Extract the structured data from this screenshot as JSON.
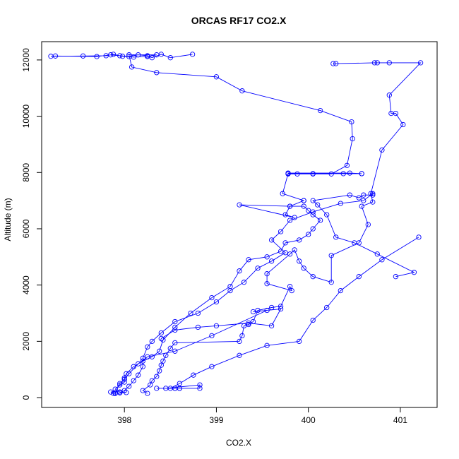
{
  "chart_data": {
    "type": "scatter",
    "title": "ORCAS RF17 CO2.X",
    "xlabel": "CO2.X",
    "ylabel": "Altitude (m)",
    "xlim": [
      397.1,
      401.4
    ],
    "ylim": [
      -350,
      12650
    ],
    "x_ticks": [
      398,
      399,
      400,
      401
    ],
    "y_ticks": [
      0,
      2000,
      4000,
      6000,
      8000,
      10000,
      12000
    ],
    "grid": false,
    "legend": "none",
    "colors": {
      "series": "#0000ff",
      "axis": "#000000",
      "background": "#ffffff"
    },
    "series": [
      {
        "points": [
          [
            398.74,
            12200
          ],
          [
            398.5,
            12080
          ],
          [
            398.4,
            12200
          ],
          [
            398.3,
            12080
          ],
          [
            398.25,
            12150
          ],
          [
            398.15,
            12180
          ],
          [
            398.05,
            12120
          ],
          [
            397.95,
            12150
          ],
          [
            397.85,
            12180
          ],
          [
            397.7,
            12120
          ],
          [
            397.25,
            12140
          ],
          [
            397.2,
            12130
          ],
          [
            397.55,
            12140
          ],
          [
            397.8,
            12150
          ],
          [
            397.88,
            12200
          ],
          [
            397.98,
            12130
          ],
          [
            398.1,
            12100
          ],
          [
            398.25,
            12120
          ],
          [
            398.35,
            12180
          ],
          [
            398.05,
            12180
          ],
          [
            398.08,
            11750
          ],
          [
            398.35,
            11550
          ],
          [
            399.0,
            11400
          ],
          [
            399.28,
            10900
          ],
          [
            400.13,
            10200
          ],
          [
            400.47,
            9800
          ],
          [
            400.48,
            9200
          ],
          [
            400.42,
            8250
          ],
          [
            400.25,
            7950
          ],
          [
            400.05,
            7950
          ],
          [
            399.88,
            7950
          ],
          [
            399.78,
            7950
          ],
          [
            399.78,
            7980
          ],
          [
            400.45,
            7980
          ],
          [
            400.58,
            7960
          ],
          [
            400.58,
            7960
          ],
          [
            400.38,
            7960
          ],
          [
            400.05,
            7960
          ],
          [
            399.78,
            7960
          ],
          [
            399.72,
            7250
          ],
          [
            399.95,
            7000
          ],
          [
            399.95,
            7000
          ],
          [
            399.8,
            6800
          ],
          [
            399.75,
            6500
          ],
          [
            399.85,
            6400
          ],
          [
            399.25,
            6850
          ],
          [
            399.8,
            6800
          ],
          [
            399.95,
            6800
          ],
          [
            400.0,
            6650
          ],
          [
            400.05,
            6500
          ],
          [
            400.13,
            6300
          ],
          [
            400.05,
            6000
          ],
          [
            400.0,
            5800
          ],
          [
            399.9,
            5600
          ],
          [
            399.75,
            5500
          ],
          [
            399.7,
            5200
          ],
          [
            399.55,
            5000
          ],
          [
            399.35,
            4900
          ],
          [
            399.25,
            4500
          ],
          [
            399.15,
            3950
          ],
          [
            398.95,
            3550
          ],
          [
            398.72,
            3000
          ],
          [
            398.55,
            2500
          ],
          [
            398.42,
            2050
          ],
          [
            398.38,
            1650
          ],
          [
            398.3,
            1450
          ],
          [
            398.2,
            1300
          ],
          [
            398.1,
            1100
          ],
          [
            398.02,
            850
          ],
          [
            398.0,
            700
          ],
          [
            398.0,
            550
          ],
          [
            397.95,
            450
          ],
          [
            397.9,
            300
          ],
          [
            397.95,
            200
          ],
          [
            398.02,
            180
          ],
          [
            397.9,
            170
          ],
          [
            397.85,
            200
          ]
        ]
      },
      {
        "points": [
          [
            400.27,
            11870
          ],
          [
            400.3,
            11870
          ],
          [
            400.72,
            11900
          ],
          [
            400.75,
            11900
          ],
          [
            400.88,
            11900
          ],
          [
            401.22,
            11900
          ],
          [
            400.88,
            10750
          ],
          [
            400.9,
            10100
          ],
          [
            400.95,
            10100
          ],
          [
            401.03,
            9700
          ],
          [
            400.8,
            8800
          ],
          [
            400.68,
            7250
          ],
          [
            400.7,
            6950
          ],
          [
            400.58,
            6800
          ],
          [
            400.65,
            6150
          ],
          [
            400.55,
            5500
          ],
          [
            400.25,
            5050
          ],
          [
            400.25,
            4100
          ],
          [
            400.05,
            4300
          ],
          [
            399.95,
            4600
          ],
          [
            399.9,
            4850
          ],
          [
            399.85,
            5250
          ],
          [
            399.8,
            5100
          ],
          [
            399.55,
            4400
          ],
          [
            399.55,
            4050
          ],
          [
            399.82,
            3800
          ],
          [
            399.8,
            3950
          ],
          [
            399.7,
            3250
          ],
          [
            399.6,
            3200
          ],
          [
            399.45,
            3100
          ],
          [
            399.4,
            2700
          ],
          [
            399.35,
            2600
          ],
          [
            399.3,
            2550
          ],
          [
            399.28,
            2200
          ],
          [
            399.25,
            2000
          ],
          [
            398.55,
            1950
          ],
          [
            398.5,
            1750
          ],
          [
            398.45,
            1500
          ],
          [
            398.42,
            1300
          ],
          [
            398.4,
            1150
          ],
          [
            398.38,
            950
          ],
          [
            398.35,
            750
          ],
          [
            398.3,
            600
          ],
          [
            398.28,
            450
          ],
          [
            398.2,
            250
          ],
          [
            398.25,
            150
          ]
        ]
      },
      {
        "points": [
          [
            401.2,
            5700
          ],
          [
            400.8,
            4900
          ],
          [
            400.55,
            4300
          ],
          [
            400.35,
            3800
          ],
          [
            400.2,
            3200
          ],
          [
            400.05,
            2750
          ],
          [
            399.9,
            2000
          ],
          [
            399.55,
            1850
          ],
          [
            399.25,
            1500
          ],
          [
            398.95,
            1100
          ],
          [
            398.75,
            800
          ],
          [
            398.6,
            500
          ],
          [
            398.5,
            330
          ],
          [
            398.55,
            330
          ],
          [
            398.6,
            330
          ],
          [
            398.82,
            330
          ],
          [
            398.82,
            450
          ],
          [
            398.45,
            330
          ],
          [
            398.35,
            330
          ],
          [
            398.6,
            330
          ],
          [
            398.55,
            330
          ]
        ]
      },
      {
        "points": [
          [
            398.4,
            2100
          ],
          [
            398.55,
            2400
          ],
          [
            398.8,
            2500
          ],
          [
            399.0,
            2550
          ],
          [
            399.35,
            2650
          ],
          [
            399.6,
            2550
          ],
          [
            399.7,
            3150
          ],
          [
            399.4,
            3050
          ],
          [
            399.55,
            3100
          ],
          [
            398.95,
            2200
          ],
          [
            398.55,
            1650
          ],
          [
            398.25,
            1450
          ],
          [
            398.15,
            1200
          ],
          [
            398.05,
            850
          ],
          [
            398.0,
            650
          ],
          [
            397.95,
            500
          ],
          [
            397.9,
            150
          ],
          [
            397.88,
            150
          ]
        ]
      },
      {
        "points": [
          [
            400.95,
            4300
          ],
          [
            401.15,
            4450
          ],
          [
            400.75,
            5100
          ],
          [
            400.5,
            5500
          ],
          [
            400.3,
            5700
          ],
          [
            400.2,
            6500
          ],
          [
            400.1,
            6850
          ],
          [
            400.05,
            7000
          ],
          [
            400.45,
            7200
          ],
          [
            400.55,
            7100
          ],
          [
            400.6,
            7200
          ],
          [
            400.7,
            7200
          ],
          [
            400.7,
            7250
          ],
          [
            400.6,
            7000
          ],
          [
            400.35,
            6900
          ],
          [
            400.05,
            6600
          ],
          [
            399.8,
            6300
          ],
          [
            399.7,
            5900
          ],
          [
            399.6,
            5600
          ],
          [
            399.75,
            5150
          ],
          [
            399.6,
            4850
          ],
          [
            399.45,
            4600
          ],
          [
            399.3,
            4100
          ],
          [
            399.15,
            3800
          ],
          [
            399.0,
            3400
          ],
          [
            398.8,
            3000
          ],
          [
            398.55,
            2700
          ],
          [
            398.4,
            2300
          ],
          [
            398.3,
            2000
          ],
          [
            398.25,
            1800
          ],
          [
            398.2,
            1400
          ],
          [
            398.2,
            1100
          ],
          [
            398.15,
            800
          ],
          [
            398.1,
            600
          ],
          [
            398.05,
            400
          ],
          [
            398.0,
            250
          ],
          [
            397.95,
            170
          ]
        ]
      }
    ]
  }
}
